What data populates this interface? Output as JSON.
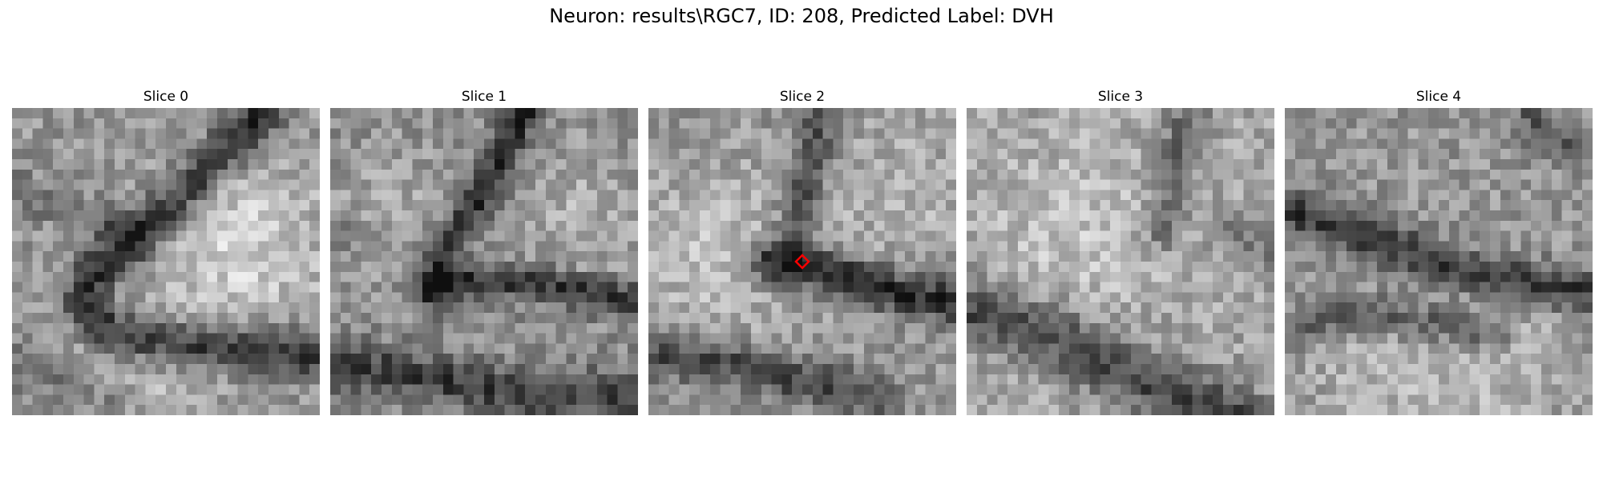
{
  "figure": {
    "title": "Neuron: results\\RGC7, ID: 208, Predicted Label: DVH"
  },
  "panels": [
    {
      "title": "Slice 0",
      "seed": 11,
      "structure": "slice0"
    },
    {
      "title": "Slice 1",
      "seed": 23,
      "structure": "slice1"
    },
    {
      "title": "Slice 2",
      "seed": 37,
      "structure": "slice2"
    },
    {
      "title": "Slice 3",
      "seed": 41,
      "structure": "slice3"
    },
    {
      "title": "Slice 4",
      "seed": 53,
      "structure": "slice4"
    }
  ],
  "marker": {
    "slice_index": 2,
    "grid_col": 15,
    "grid_row": 15,
    "color": "#ff0000",
    "shape": "diamond",
    "icon": "red-diamond-marker-icon"
  },
  "colormap": "gray"
}
